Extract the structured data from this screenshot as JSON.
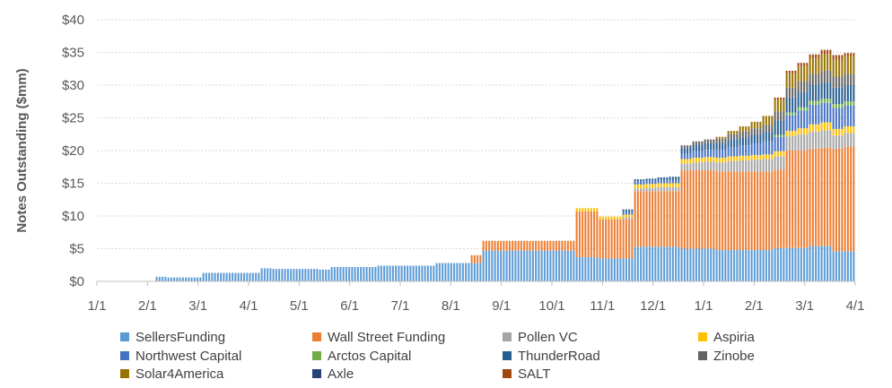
{
  "chart_data": {
    "type": "bar",
    "stacked": true,
    "title": "",
    "xlabel": "",
    "ylabel": "Notes Outstanding ($mm)",
    "ylim": [
      0,
      40
    ],
    "ytick_values": [
      0,
      5,
      10,
      15,
      20,
      25,
      30,
      35,
      40
    ],
    "ytick_labels": [
      "$0",
      "$5",
      "$10",
      "$15",
      "$20",
      "$25",
      "$30",
      "$35",
      "$40"
    ],
    "xtick_labels": [
      "1/1",
      "2/1",
      "3/1",
      "4/1",
      "5/1",
      "6/1",
      "7/1",
      "8/1",
      "9/1",
      "10/1",
      "11/1",
      "12/1",
      "1/1",
      "2/1",
      "3/1",
      "4/1"
    ],
    "grid": true,
    "legend_position": "bottom",
    "period_length": 1,
    "weeks": 65,
    "series": [
      {
        "name": "SellersFunding",
        "color": "#5B9BD5",
        "values": [
          0,
          0,
          0,
          0,
          0,
          0.7,
          0.6,
          0.6,
          0.6,
          1.3,
          1.3,
          1.3,
          1.3,
          1.3,
          2.0,
          1.9,
          1.9,
          1.9,
          1.9,
          1.8,
          2.2,
          2.2,
          2.2,
          2.2,
          2.4,
          2.4,
          2.4,
          2.4,
          2.4,
          2.8,
          2.8,
          2.8,
          2.8,
          4.7,
          4.7,
          4.7,
          4.7,
          4.7,
          4.7,
          4.7,
          4.7,
          3.7,
          3.7,
          3.5,
          3.5,
          3.5,
          5.3,
          5.3,
          5.3,
          5.3,
          5.0,
          5.0,
          5.0,
          4.8,
          4.8,
          4.8,
          4.8,
          4.8,
          5.1,
          5.1,
          5.1,
          5.4,
          5.4,
          4.6,
          4.6
        ]
      },
      {
        "name": "Wall Street Funding",
        "color": "#ED7D31",
        "values": [
          0,
          0,
          0,
          0,
          0,
          0,
          0,
          0,
          0,
          0,
          0,
          0,
          0,
          0,
          0,
          0,
          0,
          0,
          0,
          0,
          0,
          0,
          0,
          0,
          0,
          0,
          0,
          0,
          0,
          0,
          0,
          0,
          1.2,
          1.5,
          1.5,
          1.5,
          1.5,
          1.5,
          1.5,
          1.5,
          1.5,
          7.0,
          7.0,
          6.0,
          6.0,
          6.0,
          8.5,
          8.5,
          8.5,
          8.5,
          12.0,
          12.0,
          12.0,
          12.0,
          12.0,
          12.0,
          12.0,
          12.0,
          12.0,
          14.9,
          14.9,
          14.9,
          15.0,
          15.7,
          16.0
        ]
      },
      {
        "name": "Pollen VC",
        "color": "#A5A5A5",
        "values": [
          0,
          0,
          0,
          0,
          0,
          0,
          0,
          0,
          0,
          0,
          0,
          0,
          0,
          0,
          0,
          0,
          0,
          0,
          0,
          0,
          0,
          0,
          0,
          0,
          0,
          0,
          0,
          0,
          0,
          0,
          0,
          0,
          0,
          0,
          0,
          0,
          0,
          0,
          0,
          0,
          0,
          0,
          0,
          0,
          0,
          0.3,
          0.4,
          0.5,
          0.6,
          0.6,
          1.0,
          1.2,
          1.3,
          1.4,
          1.6,
          1.7,
          1.8,
          1.9,
          2.0,
          2.2,
          2.5,
          2.6,
          2.7,
          2.0,
          2.1
        ]
      },
      {
        "name": "Aspiria",
        "color": "#FFC000",
        "values": [
          0,
          0,
          0,
          0,
          0,
          0,
          0,
          0,
          0,
          0,
          0,
          0,
          0,
          0,
          0,
          0,
          0,
          0,
          0,
          0,
          0,
          0,
          0,
          0,
          0,
          0,
          0,
          0,
          0,
          0,
          0,
          0,
          0,
          0,
          0,
          0,
          0,
          0,
          0,
          0,
          0,
          0.5,
          0.5,
          0.4,
          0.4,
          0.4,
          0.6,
          0.6,
          0.6,
          0.6,
          0.7,
          0.7,
          0.7,
          0.7,
          0.7,
          0.7,
          0.7,
          0.7,
          0.8,
          0.8,
          0.9,
          1.1,
          1.2,
          1.0,
          1.0
        ]
      },
      {
        "name": "Northwest Capital",
        "color": "#4472C4",
        "values": [
          0,
          0,
          0,
          0,
          0,
          0,
          0,
          0,
          0,
          0,
          0,
          0,
          0,
          0,
          0,
          0,
          0,
          0,
          0,
          0,
          0,
          0,
          0,
          0,
          0,
          0,
          0,
          0,
          0,
          0,
          0,
          0,
          0,
          0,
          0,
          0,
          0,
          0,
          0,
          0,
          0,
          0,
          0,
          0,
          0,
          0.5,
          0.5,
          0.5,
          0.5,
          0.5,
          0.8,
          1.0,
          1.1,
          1.2,
          1.4,
          1.6,
          1.8,
          2.0,
          2.2,
          2.4,
          2.7,
          3.0,
          3.0,
          3.2,
          3.2
        ]
      },
      {
        "name": "Arctos Capital",
        "color": "#70AD47",
        "values": [
          0,
          0,
          0,
          0,
          0,
          0,
          0,
          0,
          0,
          0,
          0,
          0,
          0,
          0,
          0,
          0,
          0,
          0,
          0,
          0,
          0,
          0,
          0,
          0,
          0,
          0,
          0,
          0,
          0,
          0,
          0,
          0,
          0,
          0,
          0,
          0,
          0,
          0,
          0,
          0,
          0,
          0,
          0,
          0,
          0,
          0,
          0,
          0,
          0,
          0,
          0,
          0,
          0,
          0,
          0,
          0,
          0,
          0,
          0.3,
          0.4,
          0.5,
          0.6,
          0.6,
          0.6,
          0.6
        ]
      },
      {
        "name": "ThunderRoad",
        "color": "#255E91",
        "values": [
          0,
          0,
          0,
          0,
          0,
          0,
          0,
          0,
          0,
          0,
          0,
          0,
          0,
          0,
          0,
          0,
          0,
          0,
          0,
          0,
          0,
          0,
          0,
          0,
          0,
          0,
          0,
          0,
          0,
          0,
          0,
          0,
          0,
          0,
          0,
          0,
          0,
          0,
          0,
          0,
          0,
          0,
          0,
          0,
          0,
          0.3,
          0.3,
          0.3,
          0.4,
          0.5,
          0.9,
          1.0,
          1.0,
          1.0,
          1.2,
          1.2,
          1.3,
          1.4,
          2.2,
          2.3,
          2.4,
          2.4,
          2.5,
          2.5,
          2.5
        ]
      },
      {
        "name": "Zinobe",
        "color": "#636363",
        "values": [
          0,
          0,
          0,
          0,
          0,
          0,
          0,
          0,
          0,
          0,
          0,
          0,
          0,
          0,
          0,
          0,
          0,
          0,
          0,
          0,
          0,
          0,
          0,
          0,
          0,
          0,
          0,
          0,
          0,
          0,
          0,
          0,
          0,
          0,
          0,
          0,
          0,
          0,
          0,
          0,
          0,
          0,
          0,
          0,
          0,
          0,
          0,
          0,
          0,
          0,
          0.4,
          0.5,
          0.6,
          0.7,
          0.8,
          0.9,
          1.0,
          1.1,
          1.4,
          1.5,
          1.6,
          1.7,
          1.8,
          1.7,
          1.7
        ]
      },
      {
        "name": "Solar4America",
        "color": "#997300",
        "values": [
          0,
          0,
          0,
          0,
          0,
          0,
          0,
          0,
          0,
          0,
          0,
          0,
          0,
          0,
          0,
          0,
          0,
          0,
          0,
          0,
          0,
          0,
          0,
          0,
          0,
          0,
          0,
          0,
          0,
          0,
          0,
          0,
          0,
          0,
          0,
          0,
          0,
          0,
          0,
          0,
          0,
          0,
          0,
          0,
          0,
          0,
          0,
          0,
          0,
          0,
          0,
          0,
          0,
          0.3,
          0.5,
          0.8,
          1.0,
          1.4,
          1.8,
          2.2,
          2.3,
          2.4,
          2.5,
          2.6,
          2.7
        ]
      },
      {
        "name": "Axle",
        "color": "#264478",
        "values": [
          0,
          0,
          0,
          0,
          0,
          0,
          0,
          0,
          0,
          0,
          0,
          0,
          0,
          0,
          0,
          0,
          0,
          0,
          0,
          0,
          0,
          0,
          0,
          0,
          0,
          0,
          0,
          0,
          0,
          0,
          0,
          0,
          0,
          0,
          0,
          0,
          0,
          0,
          0,
          0,
          0,
          0,
          0,
          0,
          0,
          0,
          0,
          0,
          0,
          0,
          0,
          0,
          0,
          0,
          0,
          0,
          0,
          0,
          0,
          0,
          0,
          0,
          0,
          0,
          0
        ]
      },
      {
        "name": "SALT",
        "color": "#9E480E",
        "values": [
          0,
          0,
          0,
          0,
          0,
          0,
          0,
          0,
          0,
          0,
          0,
          0,
          0,
          0,
          0,
          0,
          0,
          0,
          0,
          0,
          0,
          0,
          0,
          0,
          0,
          0,
          0,
          0,
          0,
          0,
          0,
          0,
          0,
          0,
          0,
          0,
          0,
          0,
          0,
          0,
          0,
          0,
          0,
          0,
          0,
          0,
          0,
          0,
          0,
          0,
          0,
          0,
          0,
          0,
          0,
          0,
          0,
          0,
          0.3,
          0.4,
          0.5,
          0.6,
          0.7,
          0.7,
          0.5
        ]
      }
    ]
  }
}
